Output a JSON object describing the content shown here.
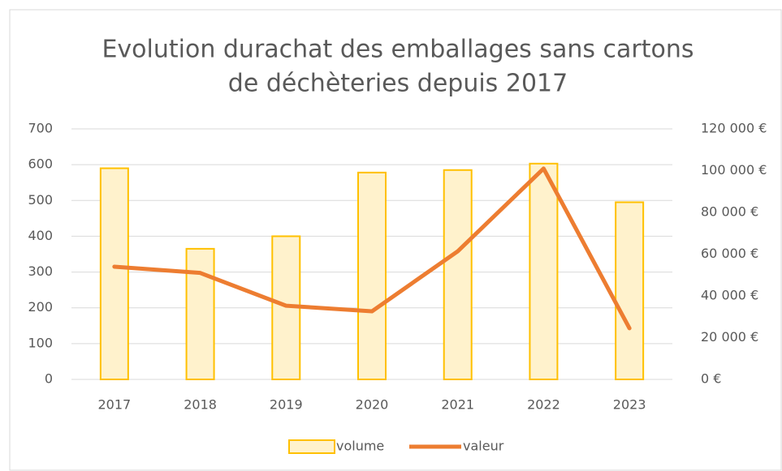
{
  "chart_data": {
    "type": "bar",
    "title": [
      "Evolution durachat des emballages sans cartons",
      "de déchèteries depuis 2017"
    ],
    "categories": [
      "2017",
      "2018",
      "2019",
      "2020",
      "2021",
      "2022",
      "2023"
    ],
    "series": [
      {
        "name": "volume",
        "type": "bar",
        "color": "#fff2cc",
        "edge_color": "#ffc000",
        "values": [
          590,
          365,
          400,
          578,
          585,
          603,
          495
        ]
      },
      {
        "name": "valeur",
        "type": "line",
        "axis": "y2",
        "color": "#ed7d31",
        "values": [
          54000,
          51000,
          35300,
          32600,
          61400,
          101000,
          24500
        ]
      }
    ],
    "ylim": [
      0,
      700
    ],
    "yticks": [
      0,
      100,
      200,
      300,
      400,
      500,
      600,
      700
    ],
    "y2lim": [
      0,
      120000
    ],
    "y2ticks": [
      {
        "value": 0,
        "label": "0 €"
      },
      {
        "value": 20000,
        "label": "20 000 €"
      },
      {
        "value": 40000,
        "label": "40 000 €"
      },
      {
        "value": 60000,
        "label": "60 000 €"
      },
      {
        "value": 80000,
        "label": "80 000 €"
      },
      {
        "value": 100000,
        "label": "100 000 €"
      },
      {
        "value": 120000,
        "label": "120 000 €"
      }
    ],
    "grid": true,
    "legend": "bottom"
  }
}
